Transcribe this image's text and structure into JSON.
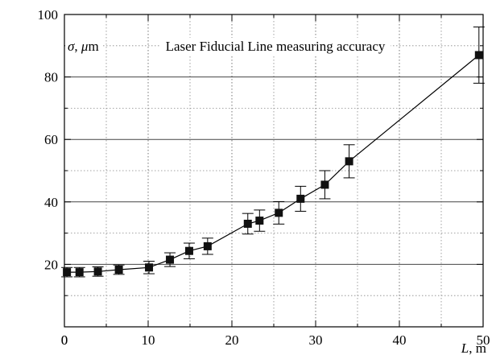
{
  "chart_data": {
    "type": "scatter",
    "title": "Laser Fiducial Line measuring accuracy",
    "xlabel": "L, m",
    "ylabel": "σ, μm",
    "xlim": [
      0,
      50
    ],
    "ylim": [
      0,
      100
    ],
    "x_ticks": [
      0,
      10,
      20,
      30,
      40,
      50
    ],
    "y_ticks": [
      20,
      40,
      60,
      80,
      100
    ],
    "grid": "dotted",
    "connected": true,
    "marker": "square",
    "series": [
      {
        "points": [
          {
            "x": 0.3,
            "y": 17.5,
            "err": 1.5
          },
          {
            "x": 1.8,
            "y": 17.5,
            "err": 1.5
          },
          {
            "x": 4.0,
            "y": 17.7,
            "err": 1.5
          },
          {
            "x": 6.5,
            "y": 18.3,
            "err": 1.5
          },
          {
            "x": 10.1,
            "y": 19.0,
            "err": 2.0
          },
          {
            "x": 12.6,
            "y": 21.5,
            "err": 2.2
          },
          {
            "x": 14.9,
            "y": 24.3,
            "err": 2.5
          },
          {
            "x": 17.1,
            "y": 25.8,
            "err": 2.6
          },
          {
            "x": 21.9,
            "y": 33.0,
            "err": 3.3
          },
          {
            "x": 23.3,
            "y": 34.0,
            "err": 3.4
          },
          {
            "x": 25.6,
            "y": 36.5,
            "err": 3.6
          },
          {
            "x": 28.2,
            "y": 41.0,
            "err": 4.0
          },
          {
            "x": 31.1,
            "y": 45.5,
            "err": 4.5
          },
          {
            "x": 34.0,
            "y": 53.0,
            "err": 5.3
          },
          {
            "x": 49.5,
            "y": 87.0,
            "err": 9.0
          }
        ]
      }
    ]
  }
}
